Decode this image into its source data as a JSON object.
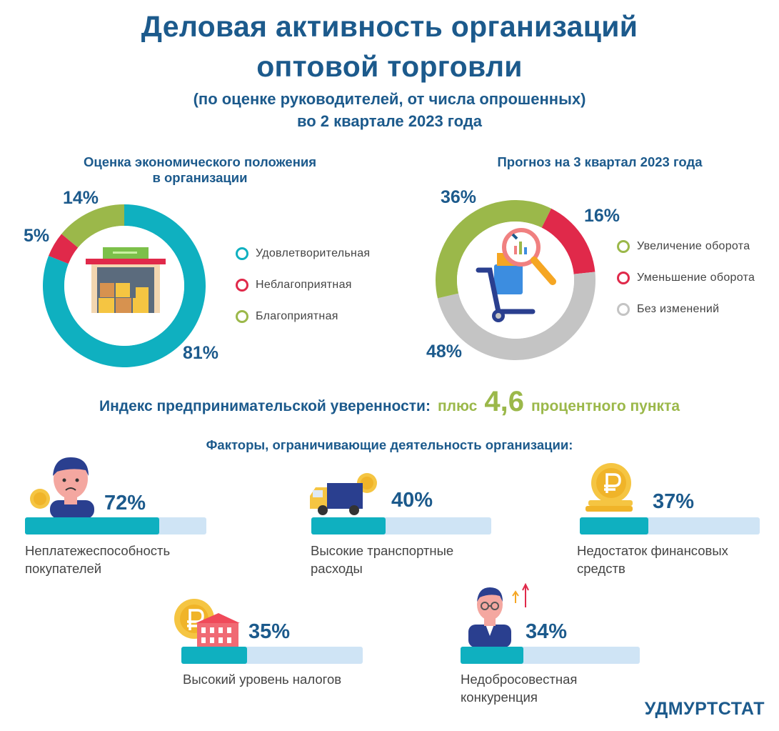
{
  "header": {
    "title_line1": "Деловая активность организаций",
    "title_line2": "оптовой торговли",
    "subtitle_line1": "(по оценке руководителей, от числа опрошенных)",
    "subtitle_line2": "во 2 квартале 2023 года"
  },
  "colors": {
    "teal": "#0fb0c0",
    "red": "#e0294a",
    "olive": "#9bb84a",
    "gray": "#c4c4c4",
    "title_blue": "#1c5a8c",
    "track": "#cfe4f5"
  },
  "chart_data": [
    {
      "type": "pie",
      "title_line1": "Оценка экономического положения",
      "title_line2": "в организации",
      "categories": [
        "Удовлетворительная",
        "Неблагоприятная",
        "Благоприятная"
      ],
      "values": [
        81,
        5,
        14
      ],
      "labels": [
        "81%",
        "5%",
        "14%"
      ],
      "colors": [
        "#0fb0c0",
        "#e0294a",
        "#9bb84a"
      ],
      "legend": "right"
    },
    {
      "type": "pie",
      "title": "Прогноз на 3 квартал 2023 года",
      "categories": [
        "Увеличение оборота",
        "Уменьшение оборота",
        "Без изменений"
      ],
      "values": [
        36,
        16,
        48
      ],
      "labels": [
        "36%",
        "16%",
        "48%"
      ],
      "colors": [
        "#9bb84a",
        "#e0294a",
        "#c4c4c4"
      ],
      "legend": "right"
    },
    {
      "type": "bar",
      "title": "Факторы, ограничивающие деятельность организации:",
      "categories": [
        "Неплатежеспособность покупателей",
        "Высокие транспортные расходы",
        "Недостаток финансовых средств",
        "Высокий уровень налогов",
        "Недобросовестная конкуренция"
      ],
      "values": [
        72,
        40,
        37,
        35,
        34
      ],
      "ylim": [
        0,
        100
      ]
    }
  ],
  "index": {
    "label": "Индекс предпринимательской уверенности:",
    "plus": "плюс",
    "value": "4,6",
    "unit": "процентного пункта"
  },
  "factors": [
    {
      "pct": "72%",
      "label_line1": "Неплатежеспособность",
      "label_line2": "покупателей"
    },
    {
      "pct": "40%",
      "label_line1": "Высокие транспортные",
      "label_line2": "расходы"
    },
    {
      "pct": "37%",
      "label_line1": "Недостаток финансовых",
      "label_line2": "средств"
    },
    {
      "pct": "35%",
      "label_line1": "Высокий уровень налогов",
      "label_line2": ""
    },
    {
      "pct": "34%",
      "label_line1": "Недобросовестная",
      "label_line2": "конкуренция"
    }
  ],
  "icons": {
    "warehouse": "warehouse-icon",
    "cart": "hand-truck-magnifier-icon",
    "person": "worried-person-icon",
    "truck": "delivery-truck-icon",
    "coins": "ruble-coins-icon",
    "building": "tax-building-icon",
    "businessman": "businessman-icon"
  },
  "brand": "УДМУРТСТАТ"
}
